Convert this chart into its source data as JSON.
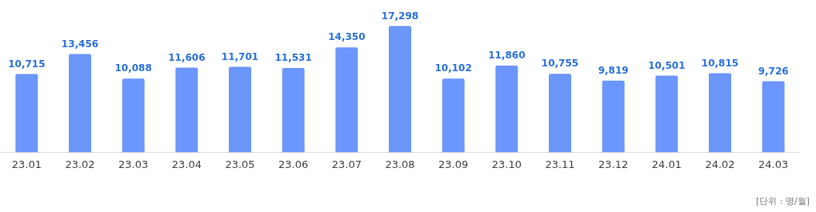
{
  "chart_data": {
    "type": "bar",
    "categories": [
      "23.01",
      "23.02",
      "23.03",
      "23.04",
      "23.05",
      "23.06",
      "23.07",
      "23.08",
      "23.09",
      "23.10",
      "23.11",
      "23.12",
      "24.01",
      "24.02",
      "24.03"
    ],
    "values": [
      10715,
      13456,
      10088,
      11606,
      11701,
      11531,
      14350,
      17298,
      10102,
      11860,
      10755,
      9819,
      10501,
      10815,
      9726
    ],
    "value_labels": [
      "10,715",
      "13,456",
      "10,088",
      "11,606",
      "11,701",
      "11,531",
      "14,350",
      "17,298",
      "10,102",
      "11,860",
      "10,755",
      "9,819",
      "10,501",
      "10,815",
      "9,726"
    ],
    "color": "#6b96fb",
    "grid": false,
    "legend": false,
    "annotations": [
      "[단위 : 명/월]"
    ]
  }
}
